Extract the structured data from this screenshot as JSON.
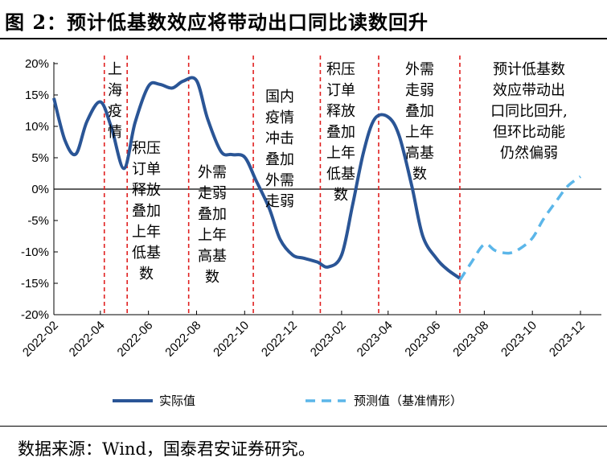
{
  "title": "图 2：预计低基数效应将带动出口同比读数回升",
  "source": "数据来源：Wind，国泰君安证券研究。",
  "chart_data": {
    "type": "line",
    "x_tick_labels": [
      "2022-02",
      "2022-04",
      "2022-06",
      "2022-08",
      "2022-10",
      "2022-12",
      "2023-02",
      "2023-04",
      "2023-06",
      "2023-08",
      "2023-10",
      "2023-12"
    ],
    "y_tick_labels": [
      "20%",
      "15%",
      "10%",
      "5%",
      "0%",
      "-5%",
      "-10%",
      "-15%",
      "-20%"
    ],
    "ylim": [
      -20,
      20
    ],
    "xlim": [
      "2022-02",
      "2023-12"
    ],
    "series": [
      {
        "name": "实际值",
        "color": "#2a5596",
        "style": "solid",
        "points": [
          {
            "x": "2022-02",
            "y": 14.5
          },
          {
            "x": "2022-02-15",
            "y": 7.8
          },
          {
            "x": "2022-03",
            "y": 5.6
          },
          {
            "x": "2022-03-15",
            "y": 10.8
          },
          {
            "x": "2022-04",
            "y": 13.9
          },
          {
            "x": "2022-04-15",
            "y": 9.8
          },
          {
            "x": "2022-05",
            "y": 3.3
          },
          {
            "x": "2022-05-15",
            "y": 10.6
          },
          {
            "x": "2022-06",
            "y": 16.4
          },
          {
            "x": "2022-06-15",
            "y": 16.7
          },
          {
            "x": "2022-07",
            "y": 16.1
          },
          {
            "x": "2022-07-15",
            "y": 17.2
          },
          {
            "x": "2022-08",
            "y": 17.3
          },
          {
            "x": "2022-08-15",
            "y": 11.2
          },
          {
            "x": "2022-09",
            "y": 6.0
          },
          {
            "x": "2022-09-15",
            "y": 5.5
          },
          {
            "x": "2022-10",
            "y": 5.1
          },
          {
            "x": "2022-10-15",
            "y": 1.5
          },
          {
            "x": "2022-11",
            "y": -3.0
          },
          {
            "x": "2022-11-15",
            "y": -8.0
          },
          {
            "x": "2022-12",
            "y": -10.5
          },
          {
            "x": "2022-12-15",
            "y": -11.0
          },
          {
            "x": "2023-01",
            "y": -11.6
          },
          {
            "x": "2023-01-15",
            "y": -12.4
          },
          {
            "x": "2023-02",
            "y": -10.5
          },
          {
            "x": "2023-02-15",
            "y": -2.5
          },
          {
            "x": "2023-03",
            "y": 6.0
          },
          {
            "x": "2023-03-15",
            "y": 11.2
          },
          {
            "x": "2023-04",
            "y": 11.5
          },
          {
            "x": "2023-04-15",
            "y": 8.5
          },
          {
            "x": "2023-05",
            "y": 0.5
          },
          {
            "x": "2023-05-15",
            "y": -7.5
          },
          {
            "x": "2023-06",
            "y": -11.0
          },
          {
            "x": "2023-06-15",
            "y": -12.8
          },
          {
            "x": "2023-07",
            "y": -14.2
          }
        ]
      },
      {
        "name": "预测值（基准情形）",
        "color": "#5bb6e9",
        "style": "dashed",
        "points": [
          {
            "x": "2023-07",
            "y": -14.5
          },
          {
            "x": "2023-07-15",
            "y": -11.8
          },
          {
            "x": "2023-08",
            "y": -8.8
          },
          {
            "x": "2023-08-15",
            "y": -9.8
          },
          {
            "x": "2023-09",
            "y": -10.2
          },
          {
            "x": "2023-09-15",
            "y": -9.5
          },
          {
            "x": "2023-10",
            "y": -7.8
          },
          {
            "x": "2023-10-15",
            "y": -4.8
          },
          {
            "x": "2023-11",
            "y": -1.8
          },
          {
            "x": "2023-11-15",
            "y": 0.5
          },
          {
            "x": "2023-12",
            "y": 2.0
          }
        ]
      }
    ],
    "vertical_markers": [
      {
        "x": "2022-04-06",
        "color": "#e02020",
        "style": "dashed"
      },
      {
        "x": "2022-05-05",
        "color": "#e02020",
        "style": "dashed"
      },
      {
        "x": "2022-07-22",
        "color": "#e02020",
        "style": "dashed"
      },
      {
        "x": "2022-10-12",
        "color": "#e02020",
        "style": "dashed"
      },
      {
        "x": "2023-01-05",
        "color": "#e02020",
        "style": "dashed"
      },
      {
        "x": "2023-03-20",
        "color": "#e02020",
        "style": "dashed"
      },
      {
        "x": "2023-07-01",
        "color": "#e02020",
        "style": "dashed"
      }
    ],
    "annotations": [
      {
        "lines": [
          "上",
          "海",
          "疫",
          "情"
        ]
      },
      {
        "lines": [
          "积压",
          "订单",
          "释放",
          "叠加",
          "上年",
          "低基",
          "数"
        ]
      },
      {
        "lines": [
          "外需",
          "走弱",
          "叠加",
          "上年",
          "高基",
          "数"
        ]
      },
      {
        "lines": [
          "国内",
          "疫情",
          "冲击",
          "叠加",
          "外需",
          "走弱"
        ]
      },
      {
        "lines": [
          "积压",
          "订单",
          "释放",
          "叠加",
          "上年",
          "低基",
          "数"
        ]
      },
      {
        "lines": [
          "外需",
          "走弱",
          "叠加",
          "上年",
          "高基",
          "数"
        ]
      },
      {
        "lines": [
          "预计低基数",
          "效应带动出",
          "口同比回升,",
          "但环比动能",
          "仍然偏弱"
        ]
      }
    ],
    "legend": {
      "position": "bottom",
      "items": [
        "实际值",
        "预测值（基准情形）"
      ]
    },
    "grid": false
  }
}
